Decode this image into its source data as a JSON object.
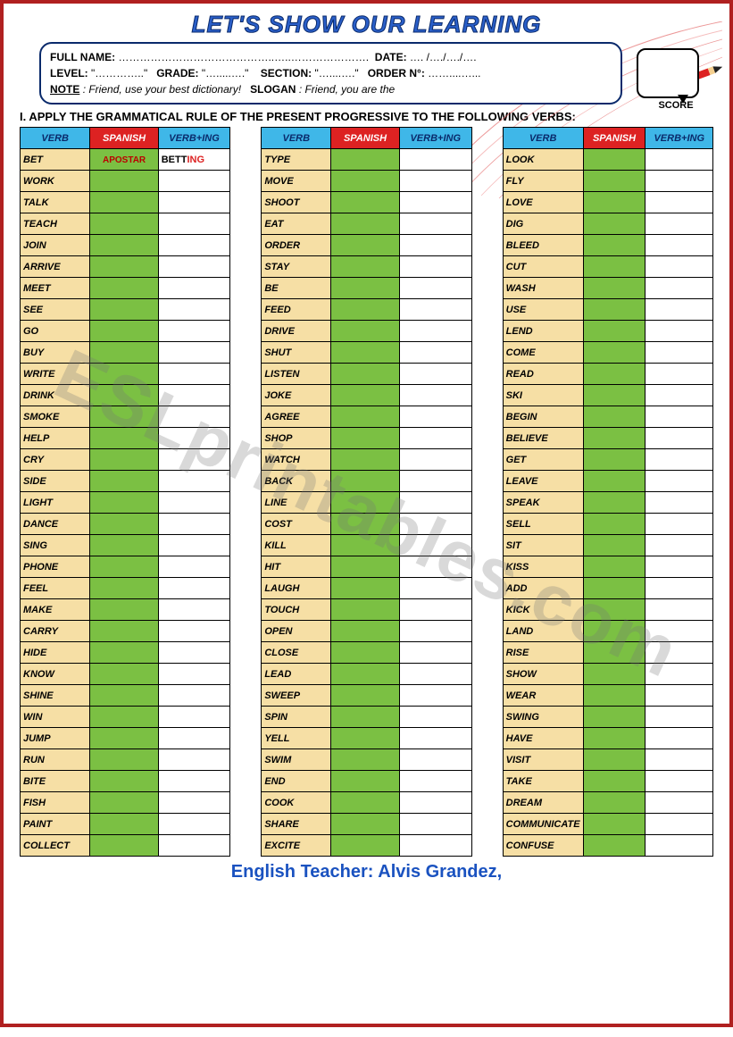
{
  "title": "LET'S SHOW OUR LEARNING",
  "header": {
    "line1a": "FULL NAME:",
    "line1b": "……………………………………..…..………………….",
    "line1c": "DATE:",
    "line1d": "…. /…./…./….",
    "line2a": "LEVEL:",
    "line2b": "\"…………..\"",
    "line2c": "GRADE:",
    "line2d": "\"….....….\"",
    "line2e": "SECTION:",
    "line2f": "\"…....….\"",
    "line2g": "ORDER N°:",
    "line2h": "……....…...",
    "line3a": "NOTE",
    "line3b": ": Friend, use your best dictionary!",
    "line3c": "SLOGAN",
    "line3d": ": Friend, you are the"
  },
  "score_label": "SCORE",
  "instruction": "I.   APPLY THE GRAMMATICAL RULE OF THE PRESENT PROGRESSIVE TO THE FOLLOWING VERBS:",
  "columns": {
    "verb": "VERB",
    "spanish": "SPANISH",
    "ing": "VERB+ING"
  },
  "example": {
    "spanish": "APOSTAR",
    "ing_base": "BETT",
    "ing_suffix": "ING"
  },
  "table1": [
    "BET",
    "WORK",
    "TALK",
    "TEACH",
    "JOIN",
    "ARRIVE",
    "MEET",
    "SEE",
    "GO",
    "BUY",
    "WRITE",
    "DRINK",
    "SMOKE",
    "HELP",
    "CRY",
    "SIDE",
    "LIGHT",
    "DANCE",
    "SING",
    "PHONE",
    "FEEL",
    "MAKE",
    "CARRY",
    "HIDE",
    "KNOW",
    "SHINE",
    "WIN",
    "JUMP",
    "RUN",
    "BITE",
    "FISH",
    "PAINT",
    "COLLECT"
  ],
  "table2": [
    "TYPE",
    "MOVE",
    "SHOOT",
    "EAT",
    "ORDER",
    "STAY",
    "BE",
    "FEED",
    "DRIVE",
    "SHUT",
    "LISTEN",
    "JOKE",
    "AGREE",
    "SHOP",
    "WATCH",
    "BACK",
    "LINE",
    "COST",
    "KILL",
    "HIT",
    "LAUGH",
    "TOUCH",
    "OPEN",
    "CLOSE",
    "LEAD",
    "SWEEP",
    "SPIN",
    "YELL",
    "SWIM",
    "END",
    "COOK",
    "SHARE",
    "EXCITE"
  ],
  "table3": [
    "LOOK",
    "FLY",
    "LOVE",
    "DIG",
    "BLEED",
    "CUT",
    "WASH",
    "USE",
    "LEND",
    "COME",
    "READ",
    "SKI",
    "BEGIN",
    "BELIEVE",
    "GET",
    "LEAVE",
    "SPEAK",
    "SELL",
    "SIT",
    "KISS",
    "ADD",
    "KICK",
    "LAND",
    "RISE",
    "SHOW",
    "WEAR",
    "SWING",
    "HAVE",
    "VISIT",
    "TAKE",
    "DREAM",
    "COMMUNICATE",
    "CONFUSE"
  ],
  "footer": "English Teacher: Alvis Grandez,",
  "watermark": "ESLprintables.com",
  "colors": {
    "border": "#b02020",
    "title": "#2a5fc9",
    "header_blue": "#3fb7e8",
    "header_red": "#d22",
    "verb_bg": "#f6dfa5",
    "span_bg": "#7bc043",
    "footer": "#1a52c0"
  }
}
